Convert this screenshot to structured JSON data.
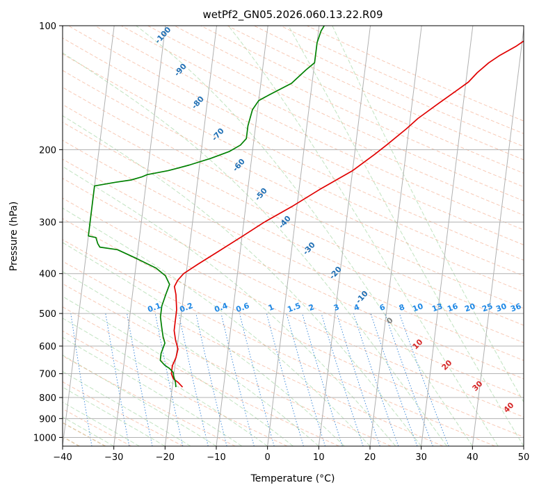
{
  "chart_data": {
    "type": "skew-t",
    "title": "wetPf2_GN05.2026.060.13.22.R09",
    "xlabel": "Temperature (°C)",
    "ylabel": "Pressure (hPa)",
    "xlim": [
      -40,
      50
    ],
    "ylim": [
      1050,
      100
    ],
    "yscale": "log",
    "grid": true,
    "x_ticks": [
      -40,
      -30,
      -20,
      -10,
      0,
      10,
      20,
      30,
      40,
      50
    ],
    "y_ticks": [
      100,
      200,
      300,
      400,
      500,
      600,
      700,
      800,
      900,
      1000
    ],
    "series": [
      {
        "color": "#e00000",
        "points": [
          [
            -18.0,
            755
          ],
          [
            -19.0,
            735
          ],
          [
            -20.0,
            720
          ],
          [
            -20.5,
            700
          ],
          [
            -20.5,
            670
          ],
          [
            -20.0,
            640
          ],
          [
            -19.8,
            610
          ],
          [
            -20.5,
            580
          ],
          [
            -21.0,
            550
          ],
          [
            -21.0,
            520
          ],
          [
            -21.0,
            490
          ],
          [
            -21.5,
            450
          ],
          [
            -22.0,
            430
          ],
          [
            -21.5,
            415
          ],
          [
            -20.5,
            400
          ],
          [
            -18.0,
            380
          ],
          [
            -14.5,
            355
          ],
          [
            -10.0,
            325
          ],
          [
            -6.0,
            300
          ],
          [
            -1.0,
            275
          ],
          [
            4.0,
            250
          ],
          [
            10.0,
            225
          ],
          [
            14.0,
            205
          ],
          [
            16.0,
            195
          ],
          [
            19.5,
            178
          ],
          [
            21.5,
            168
          ],
          [
            25.0,
            155
          ],
          [
            28.0,
            145
          ],
          [
            30.5,
            137
          ],
          [
            32.0,
            130
          ],
          [
            34.0,
            123
          ],
          [
            36.0,
            118
          ],
          [
            39.0,
            112
          ],
          [
            42.0,
            105
          ],
          [
            44.0,
            100
          ]
        ]
      },
      {
        "color": "#008000",
        "points": [
          [
            -19.3,
            755
          ],
          [
            -19.5,
            735
          ],
          [
            -20.0,
            710
          ],
          [
            -20.2,
            695
          ],
          [
            -21.0,
            680
          ],
          [
            -22.0,
            668
          ],
          [
            -23.0,
            650
          ],
          [
            -23.0,
            625
          ],
          [
            -22.5,
            590
          ],
          [
            -23.0,
            570
          ],
          [
            -23.5,
            540
          ],
          [
            -24.0,
            510
          ],
          [
            -24.0,
            480
          ],
          [
            -23.5,
            450
          ],
          [
            -23.0,
            425
          ],
          [
            -24.0,
            405
          ],
          [
            -26.0,
            388
          ],
          [
            -30.0,
            368
          ],
          [
            -34.0,
            350
          ],
          [
            -37.5,
            345
          ],
          [
            -38.0,
            338
          ],
          [
            -38.5,
            327
          ],
          [
            -39.5,
            325
          ],
          [
            -40.0,
            324
          ],
          [
            -40.0,
            305
          ],
          [
            -40.0,
            245
          ],
          [
            -36.0,
            240
          ],
          [
            -33.0,
            237
          ],
          [
            -31.0,
            233
          ],
          [
            -30.0,
            230
          ],
          [
            -26.0,
            225
          ],
          [
            -22.0,
            218
          ],
          [
            -18.0,
            210
          ],
          [
            -14.5,
            202
          ],
          [
            -12.5,
            195
          ],
          [
            -11.5,
            188
          ],
          [
            -11.5,
            175
          ],
          [
            -11.0,
            160
          ],
          [
            -10.0,
            152
          ],
          [
            -8.0,
            147
          ],
          [
            -4.0,
            138
          ],
          [
            -1.5,
            128
          ],
          [
            0.0,
            123
          ],
          [
            0.0,
            115
          ],
          [
            0.0,
            110
          ],
          [
            0.5,
            103
          ],
          [
            1.0,
            100
          ]
        ]
      }
    ],
    "dry_adiabat_labels": [
      "-100",
      "-90",
      "-80",
      "-70",
      "-60",
      "-50",
      "-40",
      "-30",
      "-20",
      "-10"
    ],
    "mixing_ratio_labels": [
      "0.1",
      "0.2",
      "0.4",
      "0.6",
      "1",
      "1.5",
      "2",
      "3",
      "4",
      "6",
      "8",
      "10",
      "13",
      "16",
      "20",
      "25",
      "30",
      "36"
    ],
    "moist_adiabat_labels": [
      "0",
      "10",
      "20",
      "30",
      "40"
    ]
  }
}
